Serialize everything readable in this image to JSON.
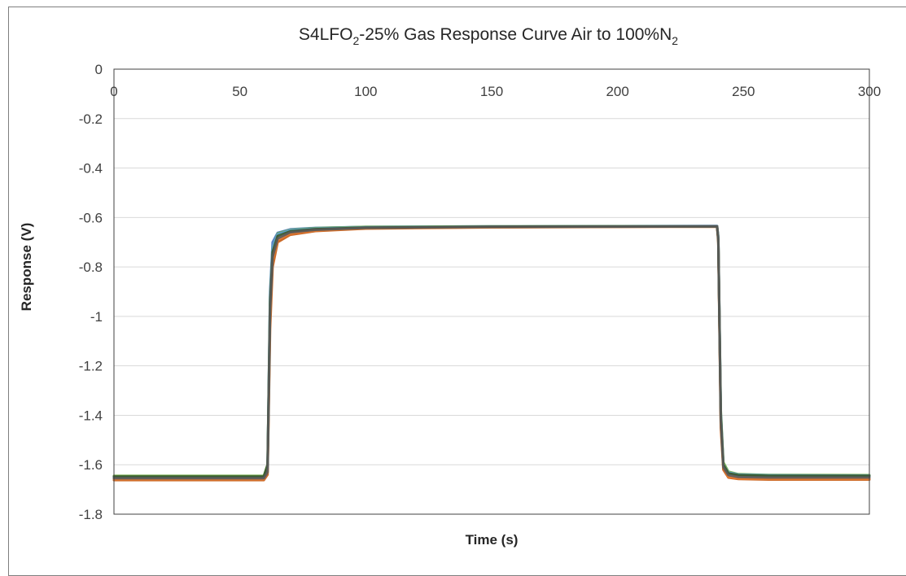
{
  "chart_data": {
    "type": "line",
    "title_parts": [
      "S4LFO",
      "2",
      "-25%  Gas Response Curve Air to 100%N",
      "2"
    ],
    "xlabel": "Time (s)",
    "ylabel": "Response (V)",
    "xlim": [
      0,
      300
    ],
    "ylim": [
      -1.8,
      0
    ],
    "xticks": [
      0,
      50,
      100,
      150,
      200,
      250,
      300
    ],
    "yticks": [
      0,
      -0.2,
      -0.4,
      -0.6,
      -0.8,
      -1,
      -1.2,
      -1.4,
      -1.6,
      -1.8
    ],
    "xtick_labels": [
      "0",
      "50",
      "100",
      "150",
      "200",
      "250",
      "300"
    ],
    "ytick_labels": [
      "0",
      "-0.2",
      "-0.4",
      "-0.6",
      "-0.8",
      "-1",
      "-1.2",
      "-1.4",
      "-1.6",
      "-1.8"
    ],
    "x_axis_position": "top",
    "grid": "horizontal",
    "legend": "none",
    "colors": {
      "grid": "#d9d9d9",
      "axis": "#404040",
      "series": [
        "#4472c4",
        "#70ad47",
        "#c55a11",
        "#ed7d31",
        "#5b9bd5",
        "#375623",
        "#595959"
      ]
    },
    "series": [
      {
        "color": "#4472c4",
        "x": [
          0,
          59.5,
          61,
          62,
          63,
          65,
          70,
          80,
          100,
          150,
          200,
          239.5,
          240,
          241,
          242,
          244,
          248,
          260,
          300
        ],
        "values": [
          -1.652,
          -1.652,
          -1.62,
          -0.9,
          -0.7,
          -0.662,
          -0.648,
          -0.642,
          -0.638,
          -0.636,
          -0.635,
          -0.634,
          -0.68,
          -1.4,
          -1.6,
          -1.635,
          -1.643,
          -1.645,
          -1.646
        ]
      },
      {
        "color": "#70ad47",
        "x": [
          0,
          59.5,
          61,
          62,
          63,
          65,
          70,
          80,
          100,
          150,
          200,
          239.5,
          240,
          241,
          242,
          244,
          248,
          260,
          300
        ],
        "values": [
          -1.645,
          -1.645,
          -1.6,
          -0.92,
          -0.72,
          -0.665,
          -0.65,
          -0.643,
          -0.638,
          -0.636,
          -0.635,
          -0.635,
          -0.68,
          -1.38,
          -1.59,
          -1.628,
          -1.638,
          -1.641,
          -1.642
        ]
      },
      {
        "color": "#c55a11",
        "x": [
          0,
          59.5,
          61,
          62,
          63,
          65,
          70,
          80,
          100,
          150,
          200,
          239.5,
          240,
          241,
          242,
          244,
          248,
          260,
          300
        ],
        "values": [
          -1.662,
          -1.662,
          -1.64,
          -1.05,
          -0.8,
          -0.7,
          -0.67,
          -0.655,
          -0.645,
          -0.64,
          -0.638,
          -0.637,
          -0.7,
          -1.45,
          -1.62,
          -1.652,
          -1.658,
          -1.66,
          -1.66
        ]
      },
      {
        "color": "#ed7d31",
        "x": [
          0,
          59.5,
          61,
          62,
          63,
          65,
          70,
          80,
          100,
          150,
          200,
          239.5,
          240,
          241,
          242,
          244,
          248,
          260,
          300
        ],
        "values": [
          -1.658,
          -1.658,
          -1.63,
          -1.0,
          -0.77,
          -0.69,
          -0.664,
          -0.652,
          -0.643,
          -0.639,
          -0.637,
          -0.636,
          -0.69,
          -1.43,
          -1.61,
          -1.648,
          -1.655,
          -1.656,
          -1.656
        ]
      },
      {
        "color": "#5b9bd5",
        "x": [
          0,
          59.5,
          61,
          62,
          63,
          65,
          70,
          80,
          100,
          150,
          200,
          239.5,
          240,
          241,
          242,
          244,
          248,
          260,
          300
        ],
        "values": [
          -1.65,
          -1.65,
          -1.61,
          -0.93,
          -0.72,
          -0.668,
          -0.652,
          -0.645,
          -0.64,
          -0.637,
          -0.636,
          -0.635,
          -0.68,
          -1.39,
          -1.6,
          -1.632,
          -1.64,
          -1.643,
          -1.644
        ]
      },
      {
        "color": "#375623",
        "x": [
          0,
          59.5,
          61,
          62,
          63,
          65,
          70,
          80,
          100,
          150,
          200,
          239.5,
          240,
          241,
          242,
          244,
          248,
          260,
          300
        ],
        "values": [
          -1.648,
          -1.648,
          -1.6,
          -0.95,
          -0.74,
          -0.675,
          -0.656,
          -0.647,
          -0.641,
          -0.637,
          -0.636,
          -0.636,
          -0.69,
          -1.4,
          -1.6,
          -1.635,
          -1.642,
          -1.645,
          -1.645
        ]
      },
      {
        "color": "#595959",
        "x": [
          0,
          59.5,
          61,
          62,
          63,
          65,
          70,
          80,
          100,
          150,
          200,
          239.5,
          240,
          241,
          242,
          244,
          248,
          260,
          300
        ],
        "values": [
          -1.655,
          -1.655,
          -1.63,
          -0.98,
          -0.76,
          -0.685,
          -0.66,
          -0.65,
          -0.642,
          -0.638,
          -0.637,
          -0.636,
          -0.69,
          -1.42,
          -1.61,
          -1.642,
          -1.65,
          -1.652,
          -1.652
        ]
      }
    ]
  }
}
